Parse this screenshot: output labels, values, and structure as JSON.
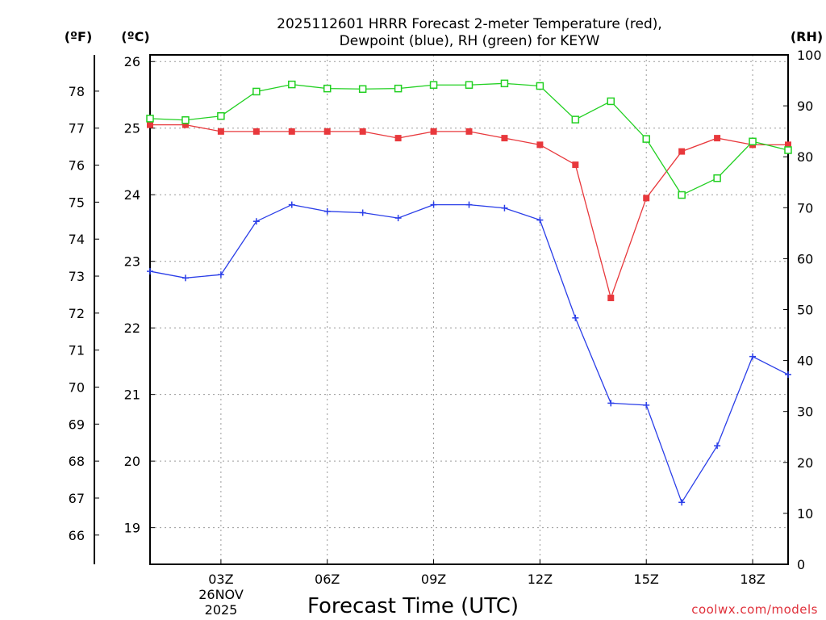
{
  "chart_data": {
    "type": "line",
    "title_line1": "2025112601 HRRR Forecast 2-meter Temperature (red),",
    "title_line2": "Dewpoint (blue), RH (green) for KEYW",
    "xlabel": "Forecast Time (UTC)",
    "credit": "coolwx.com/models",
    "unit_f": "(ºF)",
    "unit_c": "(ºC)",
    "unit_rh": "(RH)",
    "date_labels": [
      "26NOV",
      "2025"
    ],
    "colors": {
      "temperature": "#e8383c",
      "dewpoint": "#2a3ee8",
      "rh": "#22d022",
      "axis": "#000000",
      "grid": "#9a9a9a"
    },
    "x": [
      1,
      2,
      3,
      4,
      5,
      6,
      7,
      8,
      9,
      10,
      11,
      12,
      13,
      14,
      15,
      16,
      17,
      18,
      19
    ],
    "x_range": [
      1,
      19
    ],
    "x_ticks": [
      {
        "value": 3,
        "label": "03Z"
      },
      {
        "value": 6,
        "label": "06Z"
      },
      {
        "value": 9,
        "label": "09Z"
      },
      {
        "value": 12,
        "label": "12Z"
      },
      {
        "value": 15,
        "label": "15Z"
      },
      {
        "value": 18,
        "label": "18Z"
      }
    ],
    "c_range": [
      18.45,
      26.1
    ],
    "c_ticks": [
      19,
      20,
      21,
      22,
      23,
      24,
      25,
      26
    ],
    "f_ticks": [
      66,
      67,
      68,
      69,
      70,
      71,
      72,
      73,
      74,
      75,
      76,
      77,
      78
    ],
    "rh_range": [
      0,
      100
    ],
    "rh_ticks": [
      0,
      10,
      20,
      30,
      40,
      50,
      60,
      70,
      80,
      90,
      100
    ],
    "series": [
      {
        "name": "Temperature (°C)",
        "marker": "filled-square",
        "values": [
          25.05,
          25.05,
          24.95,
          24.95,
          24.95,
          24.95,
          24.95,
          24.85,
          24.95,
          24.95,
          24.85,
          24.75,
          24.45,
          22.45,
          23.95,
          24.65,
          24.85,
          24.75,
          24.75
        ]
      },
      {
        "name": "Dewpoint (°C)",
        "marker": "plus",
        "values": [
          22.85,
          22.75,
          22.8,
          23.6,
          23.85,
          23.75,
          23.73,
          23.65,
          23.85,
          23.85,
          23.8,
          23.62,
          22.15,
          20.87,
          20.84,
          19.38,
          20.23,
          21.57,
          21.3
        ]
      },
      {
        "name": "RH (%)",
        "marker": "open-square",
        "values": [
          87.5,
          87.2,
          88.0,
          92.8,
          94.2,
          93.4,
          93.3,
          93.4,
          94.1,
          94.1,
          94.4,
          93.9,
          87.3,
          90.9,
          83.5,
          72.5,
          75.8,
          83.0,
          81.3
        ]
      }
    ]
  }
}
